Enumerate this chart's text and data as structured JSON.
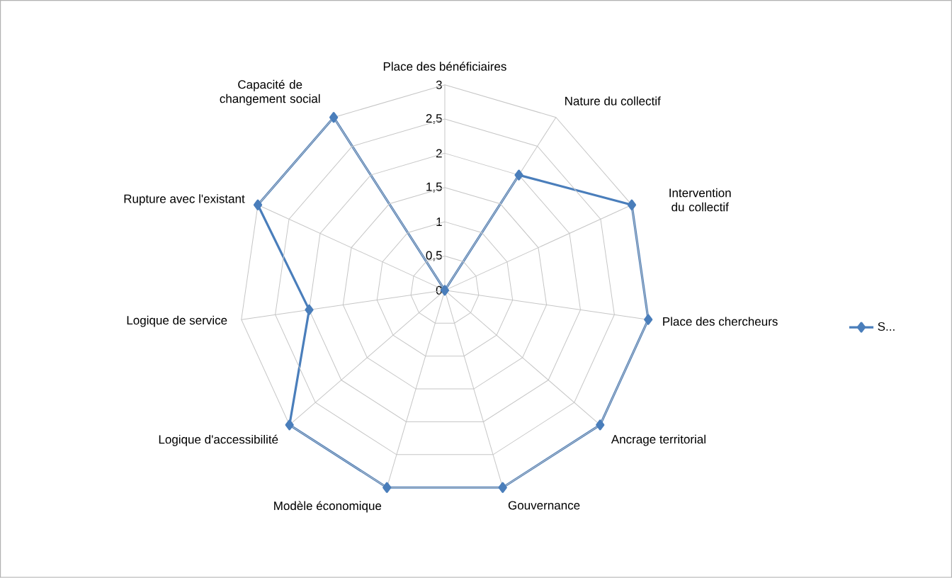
{
  "chart_data": {
    "type": "radar",
    "categories": [
      "Place des bénéficiaires",
      "Nature du collectif",
      "Intervention du collectif",
      "Place des chercheurs",
      "Ancrage territorial",
      "Gouvernance",
      "Modèle économique",
      "Logique d'accessibilité",
      "Logique de service",
      "Rupture avec l'existant",
      "Capacité de changement social"
    ],
    "series": [
      {
        "name": "S...",
        "color": "#4a7ebb",
        "values": [
          0,
          2,
          3,
          3,
          3,
          3,
          3,
          3,
          2,
          3,
          3
        ]
      }
    ],
    "ylim": [
      0,
      3
    ],
    "yticks": [
      {
        "value": 0,
        "label": "0"
      },
      {
        "value": 0.5,
        "label": "0,5"
      },
      {
        "value": 1,
        "label": "1"
      },
      {
        "value": 1.5,
        "label": "1,5"
      },
      {
        "value": 2,
        "label": "2"
      },
      {
        "value": 2.5,
        "label": "2,5"
      },
      {
        "value": 3,
        "label": "3"
      }
    ],
    "grid": true,
    "legend": "right",
    "marker": "diamond",
    "line_style": "solid"
  }
}
